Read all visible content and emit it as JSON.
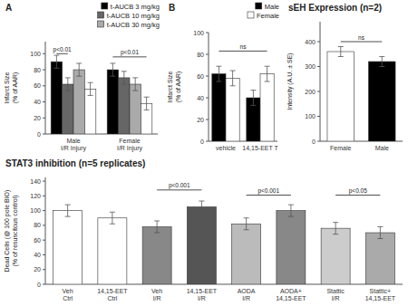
{
  "chart_data": [
    {
      "type": "bar",
      "title": "A",
      "categories": [
        "Male\nI/R Injury",
        "Female\nI/R Injury"
      ],
      "series": [
        {
          "name": "t-AUCB 3 mg/kg",
          "color": "black",
          "values": [
            90,
            80
          ],
          "errors": [
            8,
            8
          ]
        },
        {
          "name": "t-AUCB 10 mg/kg",
          "color": "#666666",
          "values": [
            62,
            70
          ],
          "errors": [
            8,
            8
          ]
        },
        {
          "name": "t-AUCB 30 mg/kg",
          "color": "#AAAAAA",
          "values": [
            80,
            62
          ],
          "errors": [
            8,
            8
          ]
        },
        {
          "color": "white",
          "values": [
            56,
            38
          ],
          "errors": [
            8,
            8
          ]
        }
      ],
      "y_label": "Infarct Size\n(% of AAR)",
      "ylim": [
        0,
        115
      ],
      "yticks": [
        0,
        20,
        40,
        60,
        80,
        100
      ],
      "grid": false,
      "legend": "upper-right",
      "annotations": [
        {
          "text": "p<0.01",
          "y": 100,
          "from": {
            "category": 0,
            "series": 0
          },
          "to": {
            "category": 0,
            "series": 1
          }
        },
        {
          "text": "p<0.01",
          "y": 96,
          "from": {
            "category": 1,
            "series": 0
          },
          "to": {
            "category": 1,
            "series": 3
          }
        }
      ]
    },
    {
      "type": "bar",
      "title": "B",
      "categories": [
        "vehicle",
        "14,15-EET T"
      ],
      "series": [
        {
          "name": "Male",
          "color": "black",
          "values": [
            62,
            40
          ],
          "errors": [
            7,
            7
          ]
        },
        {
          "name": "Female",
          "color": "white",
          "values": [
            58,
            62
          ],
          "errors": [
            7,
            7
          ]
        }
      ],
      "y_label": "Infarct Size\n(% of AAR)",
      "ylim": [
        0,
        100
      ],
      "yticks": [
        0,
        20,
        40,
        60,
        80,
        100
      ],
      "grid": false,
      "legend": "upper-right",
      "annotations": [
        {
          "text": "ns",
          "y": 83,
          "from": {
            "category": 0,
            "series": 0
          },
          "to": {
            "category": 1,
            "series": 1
          }
        }
      ]
    },
    {
      "type": "bar",
      "title": "STAT3 inhibition (n=5 replicates)",
      "categories": [
        "Veh\nCtrl",
        "14,15-EET\nCtrl",
        "Veh\nI/R",
        "14,15-EET\nI/R",
        "AODA\nI/R",
        "AODA+\n14,15-EET",
        "Stattic\nI/R",
        "Stattic+\n14,15-EET"
      ],
      "values": [
        100,
        90,
        78,
        105,
        82,
        100,
        76,
        70
      ],
      "colors": [
        "white",
        "white",
        "#888888",
        "#555555",
        "#BBBBBB",
        "#888888",
        "#CCCCCC",
        "#AAAAAA"
      ],
      "errors": [
        8,
        8,
        8,
        8,
        8,
        8,
        8,
        8
      ],
      "y_label": "Dead Cells (@ 100 pole BIO)\n(% of resuscitous control)",
      "ylim": [
        0,
        145
      ],
      "yticks": [
        0,
        20,
        40,
        60,
        80,
        100,
        120,
        140
      ],
      "grid": false,
      "annotations": [
        {
          "text": "p<0.001",
          "y": 128,
          "from": {
            "category": 2
          },
          "to": {
            "category": 3
          }
        },
        {
          "text": "p<0.001",
          "y": 121,
          "from": {
            "category": 4
          },
          "to": {
            "category": 5
          }
        },
        {
          "text": "p<0.05",
          "y": 121,
          "from": {
            "category": 6
          },
          "to": {
            "category": 7
          }
        }
      ]
    },
    {
      "type": "bar",
      "title": "sEH Expression (n=2)",
      "categories": [
        "Female",
        "Male"
      ],
      "values": [
        360,
        320
      ],
      "colors": [
        "white",
        "black"
      ],
      "errors": [
        20,
        20
      ],
      "y_label": "Intensity (A.U. ± SE)",
      "ylim": [
        0,
        480
      ],
      "yticks": [
        0,
        100,
        200,
        300,
        400
      ],
      "grid": false,
      "annotations": [
        {
          "text": "ns",
          "y": 400,
          "from": {
            "category": 0
          },
          "to": {
            "category": 1
          }
        }
      ]
    }
  ]
}
